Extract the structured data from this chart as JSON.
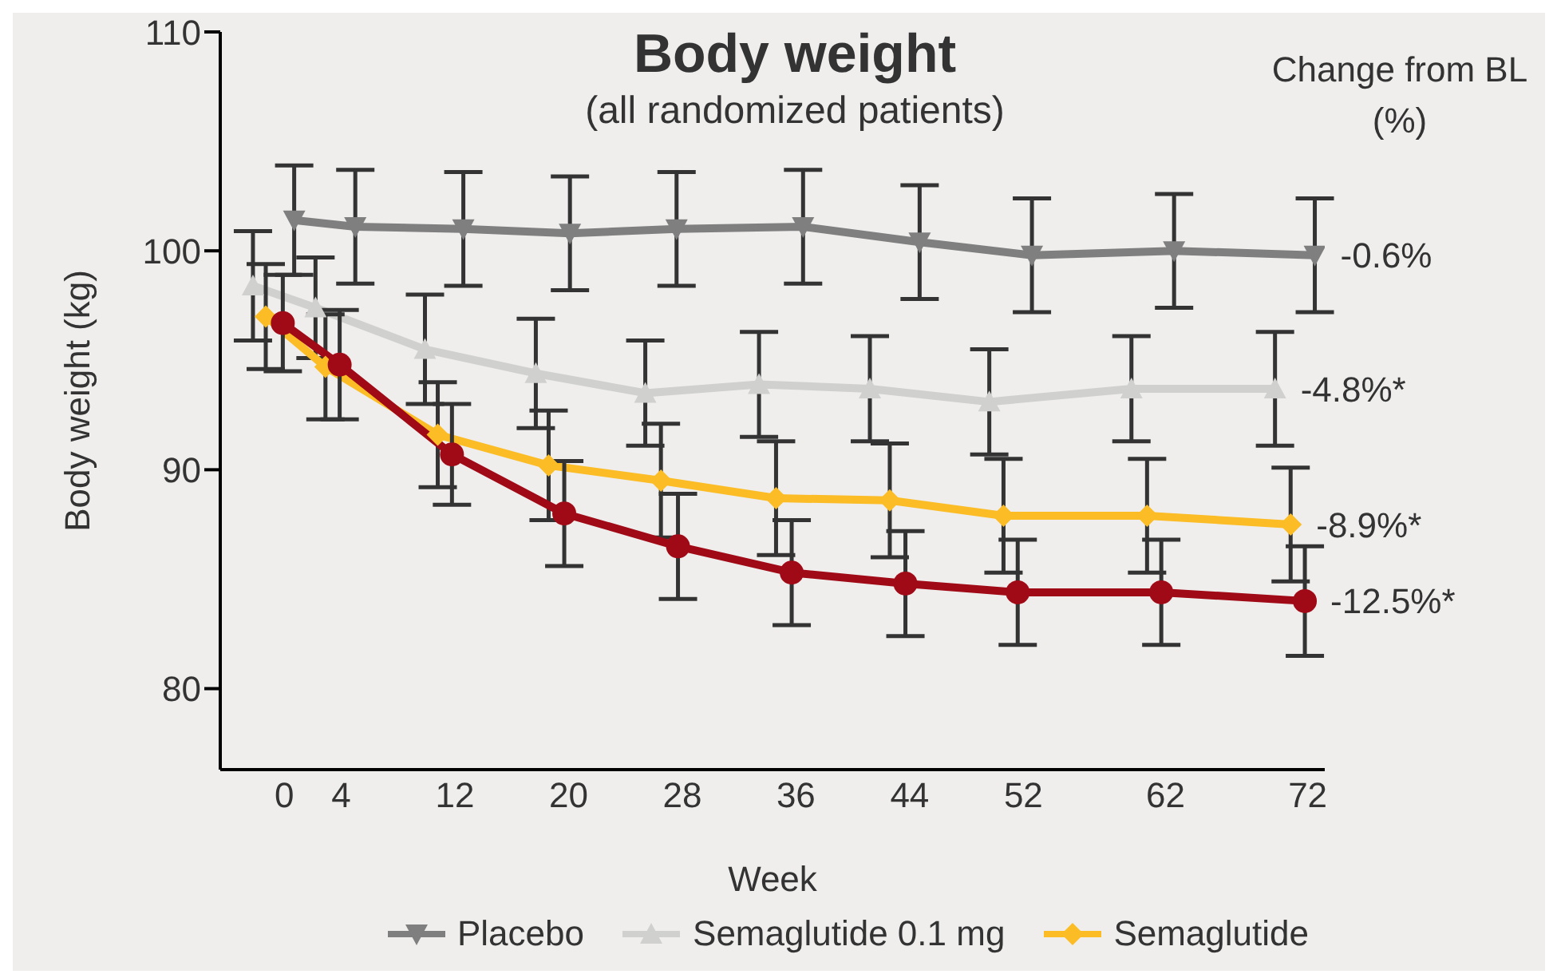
{
  "chart_data": {
    "type": "line",
    "title": "Body weight",
    "subtitle": "(all randomized patients)",
    "xlabel": "Week",
    "ylabel": "Body weight (kg)",
    "xlim": [
      -4.5,
      73.2
    ],
    "xticks": [
      0,
      4,
      12,
      20,
      28,
      36,
      44,
      52,
      62,
      72
    ],
    "ylim": [
      76.3,
      110
    ],
    "yticks": [
      80,
      90,
      100,
      110
    ],
    "grid": false,
    "legend": "bottom",
    "annotations": [
      "Change from BL (%)",
      {
        "text": "-0.6%",
        "x": 72.5,
        "y": 99.8
      },
      {
        "text": "-4.8%*",
        "x": 69.7,
        "y": 93.7
      },
      {
        "text": "-8.9%*",
        "x": 70.8,
        "y": 87.5
      },
      {
        "text": "-12.5%*",
        "x": 71.8,
        "y": 84.0
      }
    ],
    "series": [
      {
        "name": "Placebo",
        "color": "#7f7f7f",
        "marker": "triangle-down",
        "x": [
          0.7,
          5.0,
          12.6,
          20.1,
          27.6,
          36.5,
          44.7,
          52.6,
          62.6,
          72.5
        ],
        "values": [
          101.4,
          101.1,
          101.0,
          100.8,
          101.0,
          101.1,
          100.4,
          99.8,
          100.0,
          99.8
        ],
        "errors": [
          2.5,
          2.6,
          2.6,
          2.6,
          2.6,
          2.6,
          2.6,
          2.6,
          2.6,
          2.6
        ]
      },
      {
        "name": "Semaglutide 0.1 mg",
        "color": "#d0d0ce",
        "marker": "triangle",
        "x": [
          -2.2,
          2.2,
          9.9,
          17.7,
          25.4,
          33.4,
          41.2,
          49.6,
          59.6,
          69.7
        ],
        "values": [
          98.4,
          97.4,
          95.5,
          94.4,
          93.5,
          93.9,
          93.7,
          93.1,
          93.7,
          93.7
        ],
        "errors": [
          2.5,
          2.3,
          2.5,
          2.5,
          2.4,
          2.4,
          2.4,
          2.4,
          2.4,
          2.6
        ]
      },
      {
        "name": "Semaglutide",
        "color": "#fbbc25",
        "marker": "diamond",
        "x": [
          -1.3,
          2.9,
          10.8,
          18.6,
          26.5,
          34.6,
          42.6,
          50.6,
          60.7,
          70.8
        ],
        "values": [
          97.0,
          94.7,
          91.6,
          90.2,
          89.5,
          88.7,
          88.6,
          87.9,
          87.9,
          87.5
        ],
        "errors": [
          2.4,
          2.4,
          2.4,
          2.5,
          2.6,
          2.6,
          2.6,
          2.6,
          2.6,
          2.6
        ]
      },
      {
        "color": "#a00a16",
        "marker": "circle",
        "x": [
          -0.1,
          3.9,
          11.8,
          19.7,
          27.7,
          35.7,
          43.7,
          51.6,
          61.7,
          71.8
        ],
        "values": [
          96.7,
          94.8,
          90.7,
          88.0,
          86.5,
          85.3,
          84.8,
          84.4,
          84.4,
          84.0
        ],
        "errors": [
          2.2,
          2.5,
          2.3,
          2.4,
          2.4,
          2.4,
          2.4,
          2.4,
          2.4,
          2.5
        ]
      }
    ]
  }
}
